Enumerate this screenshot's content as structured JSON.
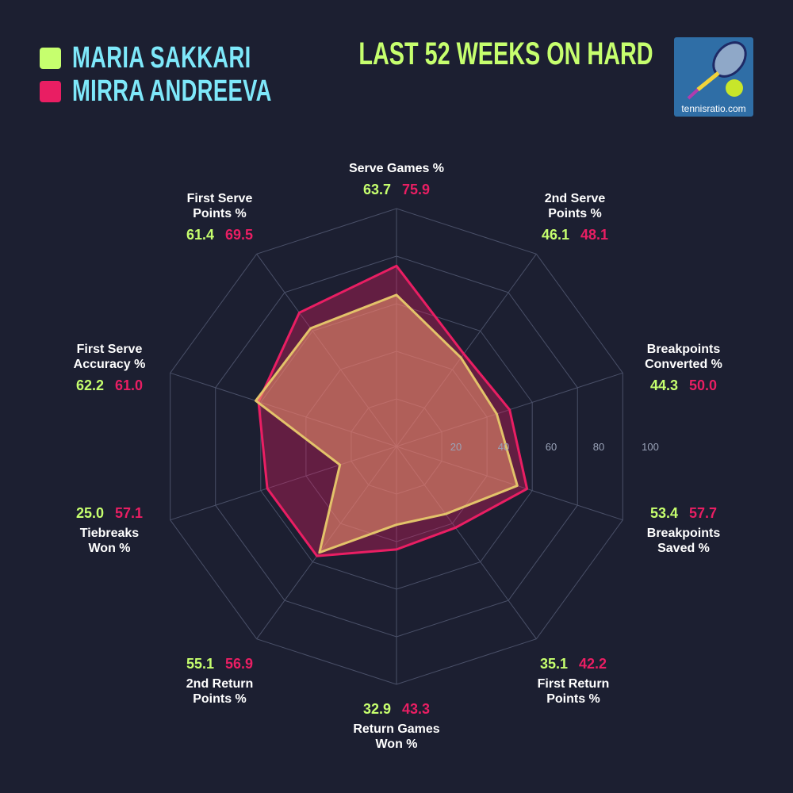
{
  "title": "LAST 52 WEEKS ON HARD",
  "logo": {
    "text": "tennisratio.com"
  },
  "chart_data": {
    "type": "radar",
    "axes": [
      "Serve Games %",
      "2nd Serve Points %",
      "Breakpoints Converted %",
      "Breakpoints Saved %",
      "First Return Points %",
      "Return Games Won %",
      "2nd Return Points %",
      "Tiebreaks Won %",
      "First Serve Accuracy %",
      "First Serve Points %"
    ],
    "axis_label_lines": [
      [
        "Serve Games %"
      ],
      [
        "2nd Serve",
        "Points %"
      ],
      [
        "Breakpoints",
        "Converted %"
      ],
      [
        "Breakpoints",
        "Saved %"
      ],
      [
        "First Return",
        "Points %"
      ],
      [
        "Return Games",
        "Won %"
      ],
      [
        "2nd Return",
        "Points %"
      ],
      [
        "Tiebreaks",
        "Won %"
      ],
      [
        "First Serve",
        "Accuracy %"
      ],
      [
        "First Serve",
        "Points %"
      ]
    ],
    "ticks": [
      "20",
      "40",
      "60",
      "80",
      "100"
    ],
    "range": [
      0,
      100
    ],
    "series": [
      {
        "name": "MARIA SAKKARI",
        "color": "#c6ff6e",
        "stroke": "#e3c36a",
        "values": [
          63.7,
          46.1,
          44.3,
          53.4,
          35.1,
          32.9,
          55.1,
          25.0,
          62.2,
          61.4
        ]
      },
      {
        "name": "MIRRA ANDREEVA",
        "color": "#e91e63",
        "stroke": "#e91e63",
        "values": [
          75.9,
          48.1,
          50.0,
          57.7,
          42.2,
          43.3,
          56.9,
          57.1,
          61.0,
          69.5
        ]
      }
    ]
  }
}
